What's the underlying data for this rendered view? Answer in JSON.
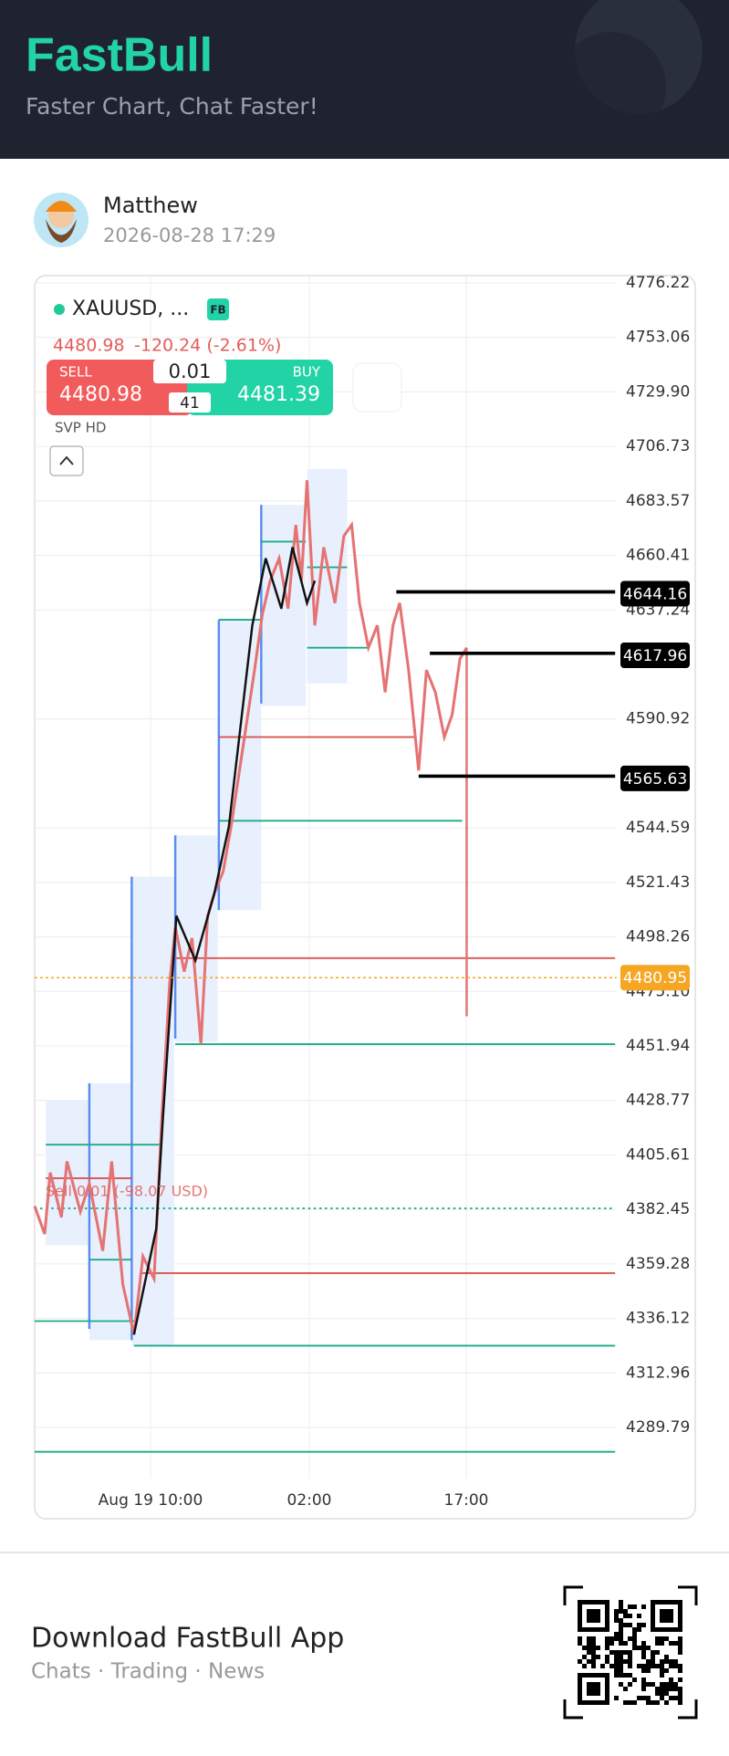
{
  "header": {
    "brand": "FastBull",
    "tagline": "Faster Chart, Chat Faster!"
  },
  "post": {
    "author": "Matthew",
    "timestamp": "2026-08-28 17:29"
  },
  "chart": {
    "symbol": "XAUUSD, ...",
    "badge": "FB",
    "quote": "4480.98",
    "change": "-120.24 (-2.61%)",
    "sell_label": "SELL",
    "sell_price": "4480.98",
    "buy_label": "BUY",
    "buy_price": "4481.39",
    "lot": "0.01",
    "spread": "41",
    "indicator": "SVP HD",
    "order_label": "Sell 0.01 (-98.07 USD)",
    "yticks": [
      4776.22,
      4753.06,
      {
        "value": 4729.9,
        "label": "4729.90"
      },
      4706.73,
      4683.57,
      4660.41,
      4637.24,
      4590.92,
      4544.59,
      4521.43,
      4498.26,
      {
        "value": 4475.1,
        "label": "4475.10"
      },
      4451.94,
      4428.77,
      4405.61,
      4382.45,
      4359.28,
      4336.12,
      4312.96,
      4289.79
    ],
    "xticks": [
      "Aug 19 10:00",
      "02:00",
      "17:00"
    ],
    "price_tags": [
      {
        "value": 4644.16,
        "color": "#000000"
      },
      {
        "value": 4617.96,
        "color": "#000000"
      },
      {
        "value": 4565.63,
        "color": "#000000"
      },
      {
        "value": 4480.95,
        "color": "#f5a623"
      }
    ]
  },
  "footer": {
    "title": "Download FastBull App",
    "subtitle": "Chats · Trading · News"
  }
}
